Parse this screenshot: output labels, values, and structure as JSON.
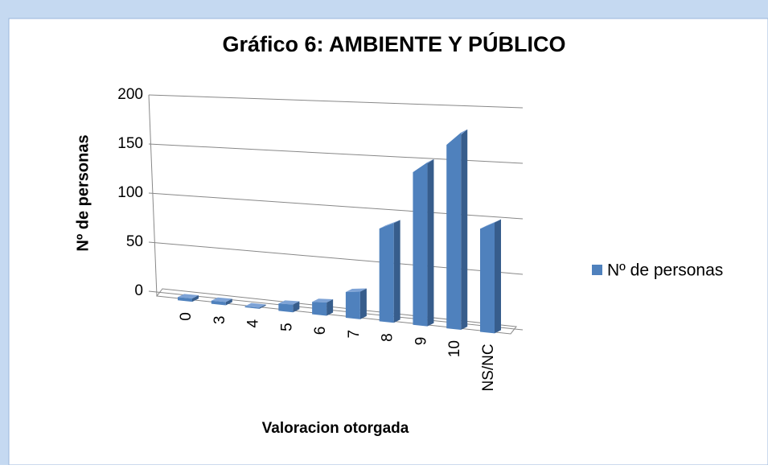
{
  "chart_data": {
    "type": "bar",
    "title": "Gráfico 6: AMBIENTE Y PÚBLICO",
    "x_label": "Valoracion otorgada",
    "y_label": "Nº de personas",
    "categories": [
      "0",
      "3",
      "4",
      "5",
      "6",
      "7",
      "8",
      "9",
      "10",
      "NS/NC"
    ],
    "series": [
      {
        "name": "Nº de personas",
        "color": "#4f81bd",
        "values": [
          3,
          3,
          1,
          7,
          12,
          25,
          90,
          148,
          178,
          100
        ]
      }
    ],
    "ylim": [
      0,
      200
    ],
    "yticks": [
      0,
      50,
      100,
      150,
      200
    ],
    "grid": true,
    "legend": "right"
  }
}
